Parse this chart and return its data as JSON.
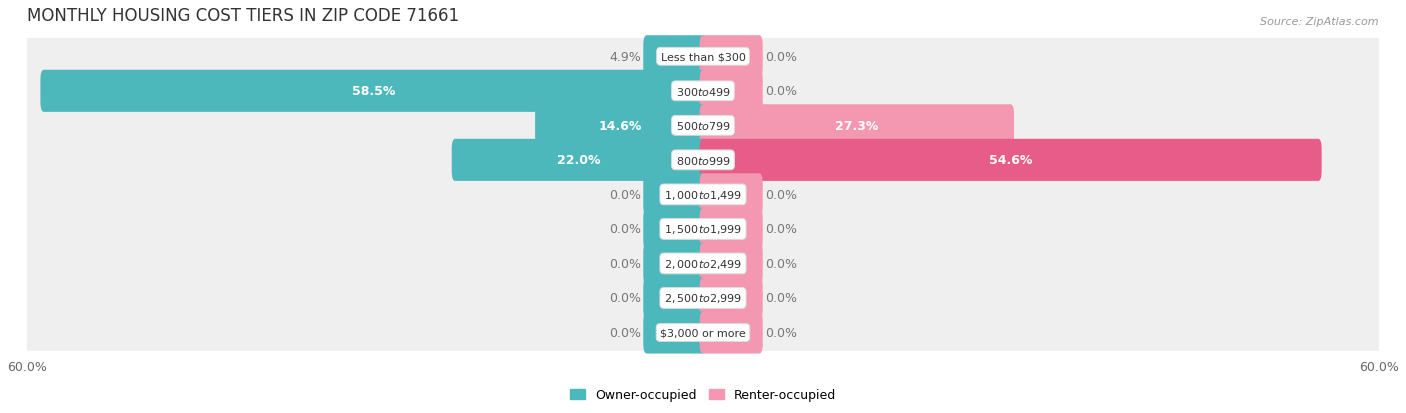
{
  "title": "MONTHLY HOUSING COST TIERS IN ZIP CODE 71661",
  "source": "Source: ZipAtlas.com",
  "categories": [
    "Less than $300",
    "$300 to $499",
    "$500 to $799",
    "$800 to $999",
    "$1,000 to $1,499",
    "$1,500 to $1,999",
    "$2,000 to $2,499",
    "$2,500 to $2,999",
    "$3,000 or more"
  ],
  "owner_values": [
    4.9,
    58.5,
    14.6,
    22.0,
    0.0,
    0.0,
    0.0,
    0.0,
    0.0
  ],
  "renter_values": [
    0.0,
    0.0,
    27.3,
    54.6,
    0.0,
    0.0,
    0.0,
    0.0,
    0.0
  ],
  "owner_color": "#4db8bc",
  "renter_color": "#f497b0",
  "renter_color_dark": "#e85c8a",
  "row_bg_color": "#efefef",
  "row_gap_color": "#ffffff",
  "max_val": 60.0,
  "bar_height": 0.62,
  "stub_size": 5.0,
  "label_color_inside": "#ffffff",
  "label_color_outside": "#777777",
  "title_fontsize": 12,
  "axis_label_fontsize": 9,
  "bar_label_fontsize": 9,
  "category_fontsize": 8,
  "legend_fontsize": 9,
  "source_fontsize": 8
}
